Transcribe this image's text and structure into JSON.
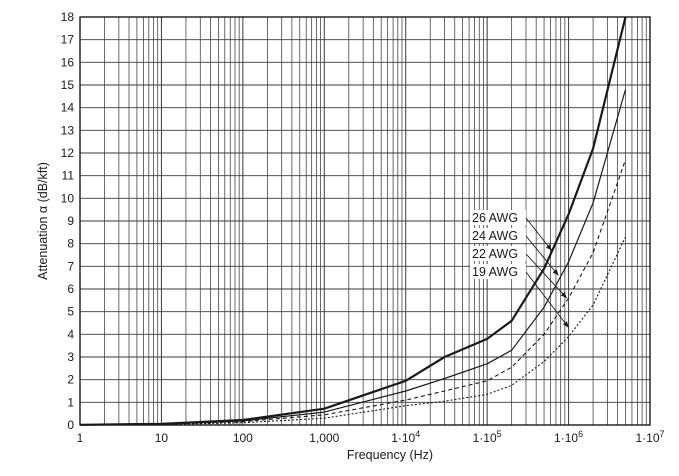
{
  "chart_data": {
    "type": "line",
    "title": "",
    "xlabel": "Frequency (Hz)",
    "ylabel": "Attenuation α (dB/kft)",
    "x_scale": "log",
    "xlim": [
      1,
      10000000
    ],
    "ylim": [
      0,
      18
    ],
    "grid": true,
    "x_tick_values": [
      1,
      10,
      100,
      1000,
      10000,
      100000,
      1000000,
      10000000
    ],
    "x_tick_labels": [
      {
        "base": "1",
        "exp": ""
      },
      {
        "base": "10",
        "exp": ""
      },
      {
        "base": "100",
        "exp": ""
      },
      {
        "base": "1,000",
        "exp": ""
      },
      {
        "base": "1·10",
        "exp": "4"
      },
      {
        "base": "1·10",
        "exp": "5"
      },
      {
        "base": "1·10",
        "exp": "6"
      },
      {
        "base": "1·10",
        "exp": "7"
      }
    ],
    "y_tick_values": [
      0,
      1,
      2,
      3,
      4,
      5,
      6,
      7,
      8,
      9,
      10,
      11,
      12,
      13,
      14,
      15,
      16,
      17,
      18
    ],
    "series": [
      {
        "name": "26 AWG",
        "style": "thick",
        "points": [
          [
            1,
            0.01
          ],
          [
            10,
            0.05
          ],
          [
            100,
            0.22
          ],
          [
            1000,
            0.72
          ],
          [
            10000,
            1.95
          ],
          [
            30000,
            3.0
          ],
          [
            100000,
            3.8
          ],
          [
            200000,
            4.6
          ],
          [
            500000,
            6.9
          ],
          [
            1000000,
            9.3
          ],
          [
            2000000,
            12.2
          ],
          [
            5000000,
            18.0
          ]
        ]
      },
      {
        "name": "24 AWG",
        "style": "solid",
        "points": [
          [
            1,
            0.01
          ],
          [
            10,
            0.04
          ],
          [
            100,
            0.18
          ],
          [
            1000,
            0.57
          ],
          [
            10000,
            1.5
          ],
          [
            30000,
            2.05
          ],
          [
            100000,
            2.7
          ],
          [
            200000,
            3.3
          ],
          [
            500000,
            5.2
          ],
          [
            1000000,
            7.2
          ],
          [
            2000000,
            9.8
          ],
          [
            5000000,
            14.8
          ]
        ]
      },
      {
        "name": "22 AWG",
        "style": "dashed",
        "points": [
          [
            1,
            0.01
          ],
          [
            10,
            0.03
          ],
          [
            100,
            0.15
          ],
          [
            1000,
            0.45
          ],
          [
            10000,
            1.1
          ],
          [
            30000,
            1.5
          ],
          [
            100000,
            1.95
          ],
          [
            200000,
            2.55
          ],
          [
            500000,
            4.0
          ],
          [
            1000000,
            5.6
          ],
          [
            2000000,
            7.6
          ],
          [
            5000000,
            11.7
          ]
        ]
      },
      {
        "name": "19 AWG",
        "style": "dotted",
        "points": [
          [
            1,
            0.0
          ],
          [
            10,
            0.02
          ],
          [
            100,
            0.1
          ],
          [
            1000,
            0.3
          ],
          [
            10000,
            0.85
          ],
          [
            30000,
            1.05
          ],
          [
            100000,
            1.35
          ],
          [
            200000,
            1.75
          ],
          [
            500000,
            2.8
          ],
          [
            1000000,
            3.9
          ],
          [
            2000000,
            5.3
          ],
          [
            5000000,
            8.3
          ]
        ]
      }
    ],
    "annotations": [
      {
        "label": "26 AWG",
        "target": [
          620000,
          7.7
        ]
      },
      {
        "label": "24 AWG",
        "target": [
          750000,
          6.6
        ]
      },
      {
        "label": "22 AWG",
        "target": [
          950000,
          5.6
        ]
      },
      {
        "label": "19 AWG",
        "target": [
          1000000,
          4.3
        ]
      }
    ]
  }
}
